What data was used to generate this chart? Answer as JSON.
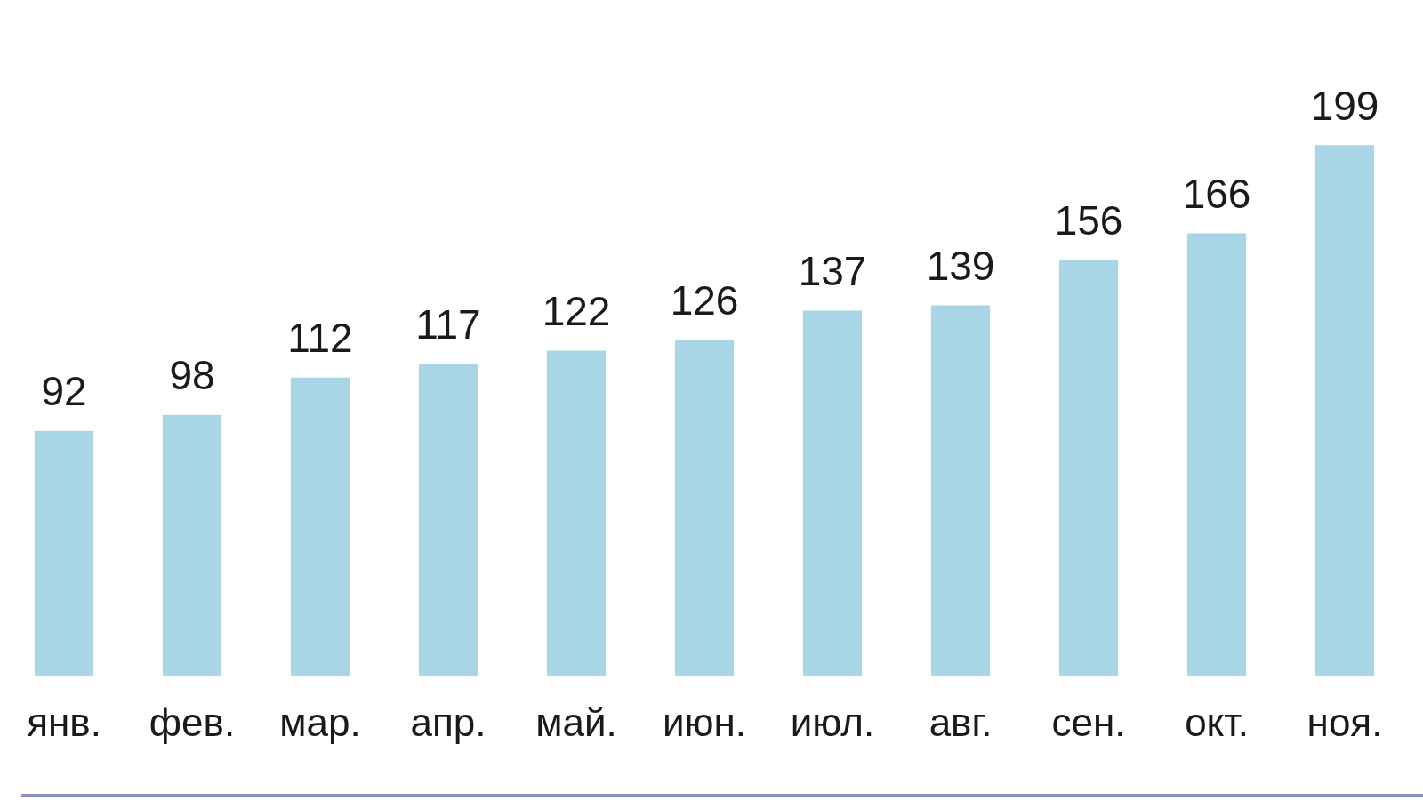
{
  "chart_data": {
    "type": "bar",
    "categories": [
      "янв.",
      "фев.",
      "мар.",
      "апр.",
      "май.",
      "июн.",
      "июл.",
      "авг.",
      "сен.",
      "окт.",
      "ноя."
    ],
    "values": [
      92,
      98,
      112,
      117,
      122,
      126,
      137,
      139,
      156,
      166,
      199
    ],
    "color": "#a8d6e7",
    "data_labels": true,
    "tick_labels": "x",
    "grid": false,
    "legend": false
  }
}
